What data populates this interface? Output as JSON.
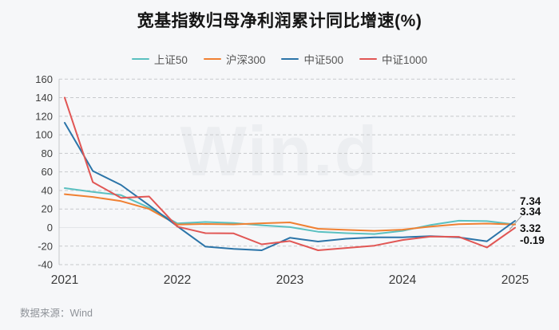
{
  "title": "宽基指数归母净利润累计同比增速(%)",
  "watermark": "Win.d",
  "source": "数据来源：Wind",
  "chart_data": {
    "type": "line",
    "title": "宽基指数归母净利润累计同比增速(%)",
    "x_axis": {
      "tick_labels": [
        "2021",
        "2022",
        "2023",
        "2024",
        "2025"
      ],
      "tick_point_indices": [
        0,
        4,
        8,
        12,
        16
      ],
      "points_per_year": 4,
      "note": "17 quarterly points from 2021Q1 to 2025Q1"
    },
    "y_axis": {
      "ticks": [
        160,
        140,
        120,
        100,
        80,
        60,
        40,
        20,
        0,
        -20,
        -40
      ],
      "ylim": [
        -40,
        160
      ],
      "grid": "dashed"
    },
    "legend_position": "top",
    "series": [
      {
        "name": "上证50",
        "color": "#5ac0c0",
        "end_label": "3.34",
        "end_value": 3.34,
        "values": [
          42.5,
          38.5,
          35,
          21.5,
          4.5,
          6,
          5,
          2.5,
          0.5,
          -4.5,
          -6,
          -7,
          -3.5,
          2.8,
          7.4,
          7.0,
          3.34
        ]
      },
      {
        "name": "沪深300",
        "color": "#f08032",
        "end_label": "3.32",
        "end_value": 3.32,
        "values": [
          36,
          33,
          28.5,
          20,
          3.2,
          3.9,
          3.4,
          4.6,
          5.6,
          -1.3,
          -2.5,
          -3.5,
          -2.2,
          1.0,
          3.7,
          4.3,
          3.32
        ]
      },
      {
        "name": "中证500",
        "color": "#2b74a8",
        "end_label": "7.34",
        "end_value": 7.34,
        "values": [
          113,
          61,
          46,
          24,
          1.5,
          -20.5,
          -23,
          -24.5,
          -11,
          -15,
          -12,
          -10.5,
          -10.5,
          -9.2,
          -10.5,
          -14.8,
          7.34
        ]
      },
      {
        "name": "中证1000",
        "color": "#e15654",
        "end_label": "-0.19",
        "end_value": -0.19,
        "values": [
          140,
          49,
          32,
          33.5,
          1.0,
          -6.0,
          -6.3,
          -18,
          -14.5,
          -24.5,
          -22,
          -19.5,
          -13.4,
          -9.7,
          -10,
          -21.5,
          -0.19
        ]
      }
    ]
  }
}
